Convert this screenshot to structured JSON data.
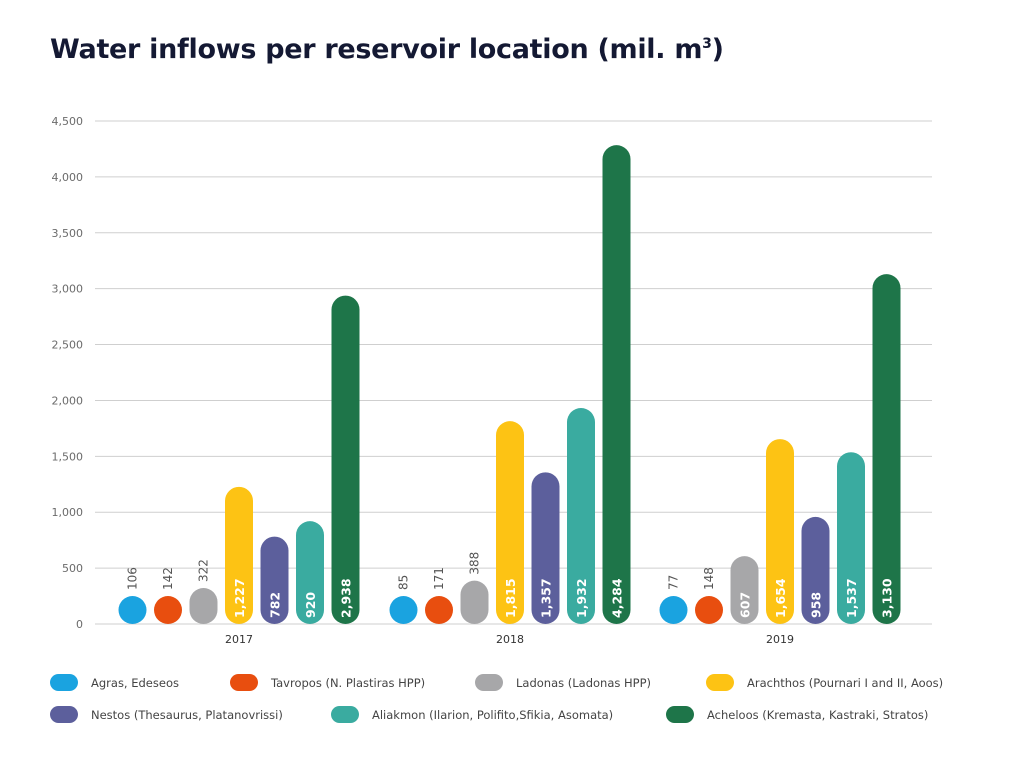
{
  "title_text": "Water inflows per reservoir location (mil. m",
  "title_sup": "3",
  "title_close": ")",
  "chart_data": {
    "type": "bar",
    "title": "Water inflows per reservoir location (mil. m3)",
    "categories": [
      "2017",
      "2018",
      "2019"
    ],
    "ylim": [
      0,
      4500
    ],
    "yticks": [
      0,
      500,
      1000,
      1500,
      2000,
      2500,
      3000,
      3500,
      4000,
      4500
    ],
    "ytick_labels": [
      "0",
      "500",
      "1,000",
      "1,500",
      "2,000",
      "2,500",
      "3,000",
      "3,500",
      "4,000",
      "4,500"
    ],
    "grid": true,
    "legend_position": "bottom",
    "series": [
      {
        "name": "Agras, Edeseos",
        "color": "#1aa3e0",
        "values": [
          106,
          85,
          77
        ],
        "labels": [
          "106",
          "85",
          "77"
        ]
      },
      {
        "name": "Tavropos (N. Plastiras HPP)",
        "color": "#e84e0f",
        "values": [
          142,
          171,
          148
        ],
        "labels": [
          "142",
          "171",
          "148"
        ]
      },
      {
        "name": "Ladonas (Ladonas HPP)",
        "color": "#a7a7a9",
        "values": [
          322,
          388,
          607
        ],
        "labels": [
          "322",
          "388",
          "607"
        ]
      },
      {
        "name": "Arachthos (Pournari I and II, Aoos)",
        "color": "#fdc314",
        "values": [
          1227,
          1815,
          1654
        ],
        "labels": [
          "1,227",
          "1,815",
          "1,654"
        ]
      },
      {
        "name": "Nestos (Thesaurus, Platanovrissi)",
        "color": "#5c5f9c",
        "values": [
          782,
          1357,
          958
        ],
        "labels": [
          "782",
          "1,357",
          "958"
        ]
      },
      {
        "name": "Aliakmon (Ilarion, Polifito,Sfikia, Asomata)",
        "color": "#3aaba0",
        "values": [
          920,
          1932,
          1537
        ],
        "labels": [
          "920",
          "1,932",
          "1,537"
        ]
      },
      {
        "name": "Acheloos (Kremasta, Kastraki, Stratos)",
        "color": "#1e7549",
        "values": [
          2938,
          4284,
          3130
        ],
        "labels": [
          "2,938",
          "4,284",
          "3,130"
        ]
      }
    ]
  }
}
